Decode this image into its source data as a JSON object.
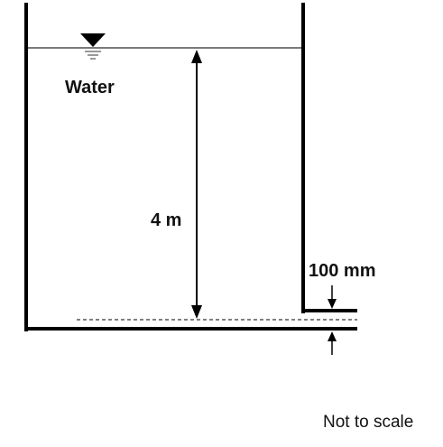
{
  "diagram": {
    "fluid_label": "Water",
    "depth_label": "4 m",
    "gap_label": "100 mm",
    "note": "Not to scale",
    "colors": {
      "wall": "#000000",
      "water_surface": "#7a7a7a",
      "dimension": "#000000",
      "text": "#111111"
    },
    "icons": {
      "free_surface": "free-surface-triangle-icon",
      "dimension_arrow": "arrowhead-icon"
    }
  }
}
